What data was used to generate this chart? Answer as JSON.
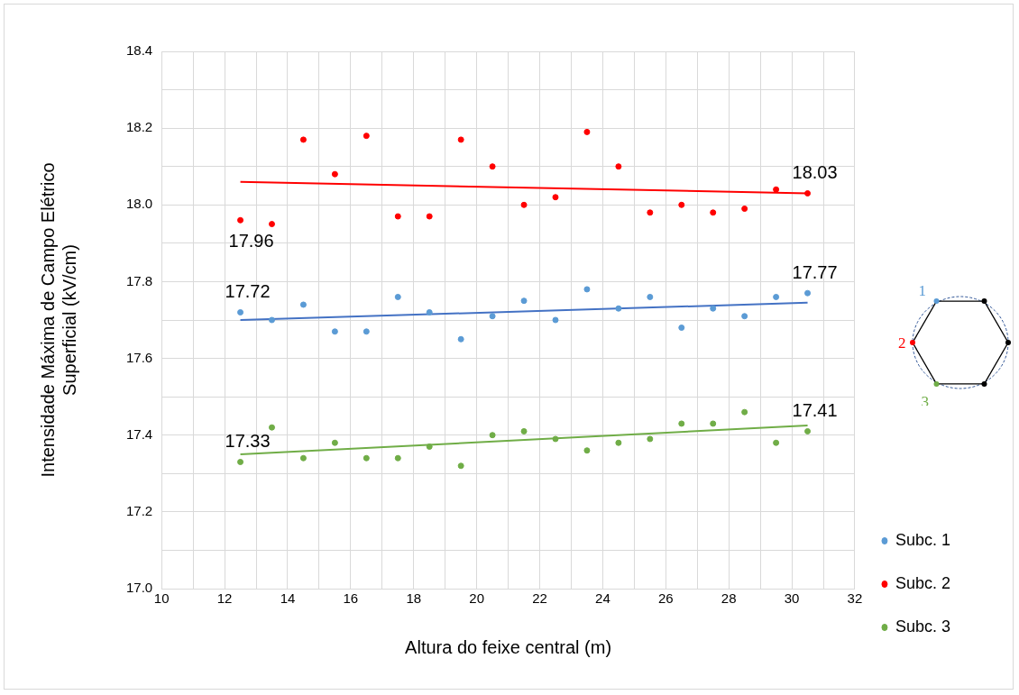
{
  "chart_data": {
    "type": "scatter",
    "xlabel": "Altura do feixe central (m)",
    "ylabel": "Intensidade Máxima de Campo Elétrico Superficial (kV/cm)",
    "x": [
      12.5,
      13.5,
      14.5,
      15.5,
      16.5,
      17.5,
      18.5,
      19.5,
      20.5,
      21.5,
      22.5,
      23.5,
      24.5,
      25.5,
      26.5,
      27.5,
      28.5,
      29.5,
      30.5
    ],
    "series": [
      {
        "name": "Subc. 1",
        "color": "#5b9bd5",
        "values": [
          17.72,
          17.7,
          17.74,
          17.67,
          17.67,
          17.76,
          17.72,
          17.65,
          17.71,
          17.75,
          17.7,
          17.78,
          17.73,
          17.76,
          17.68,
          17.73,
          17.71,
          17.76,
          17.77
        ],
        "value_labels": [
          "17.72",
          null,
          null,
          null,
          null,
          null,
          null,
          null,
          null,
          null,
          null,
          null,
          null,
          null,
          null,
          null,
          null,
          null,
          "17.77"
        ]
      },
      {
        "name": "Subc. 2",
        "color": "#ff0000",
        "values": [
          17.96,
          17.95,
          18.17,
          18.08,
          18.18,
          17.97,
          17.97,
          18.17,
          18.1,
          18.0,
          18.02,
          18.19,
          18.1,
          17.98,
          18.0,
          17.98,
          17.99,
          18.04,
          18.03
        ],
        "value_labels": [
          "17.96",
          null,
          null,
          null,
          null,
          null,
          null,
          null,
          null,
          null,
          null,
          null,
          null,
          null,
          null,
          null,
          null,
          null,
          "18.03"
        ]
      },
      {
        "name": "Subc. 3",
        "color": "#70ad47",
        "values": [
          17.33,
          17.42,
          17.34,
          17.38,
          17.34,
          17.34,
          17.37,
          17.32,
          17.4,
          17.41,
          17.39,
          17.36,
          17.38,
          17.39,
          17.43,
          17.43,
          17.46,
          17.38,
          17.41
        ],
        "value_labels": [
          "17.33",
          null,
          null,
          null,
          null,
          null,
          null,
          null,
          null,
          null,
          null,
          null,
          null,
          null,
          null,
          null,
          null,
          null,
          "17.41"
        ]
      },
      {
        "type": "line",
        "color": "#4472c4",
        "marker": "none",
        "values": [
          17.7,
          null,
          null,
          null,
          null,
          null,
          null,
          null,
          null,
          null,
          null,
          null,
          null,
          null,
          null,
          null,
          null,
          null,
          17.745
        ]
      },
      {
        "type": "line",
        "color": "#ff0000",
        "marker": "none",
        "values": [
          18.06,
          null,
          null,
          null,
          null,
          null,
          null,
          null,
          null,
          null,
          null,
          null,
          null,
          null,
          null,
          null,
          null,
          null,
          18.03
        ]
      },
      {
        "type": "line",
        "color": "#70ad47",
        "marker": "none",
        "values": [
          17.35,
          null,
          null,
          null,
          null,
          null,
          null,
          null,
          null,
          null,
          null,
          null,
          null,
          null,
          null,
          null,
          null,
          null,
          17.425
        ]
      }
    ],
    "annotations": [
      "1",
      "2",
      "3"
    ],
    "xlim": [
      10,
      32
    ],
    "xticks": [
      10,
      {
        "value": 11,
        "label": null
      },
      12,
      {
        "value": 13,
        "label": null
      },
      14,
      {
        "value": 15,
        "label": null
      },
      16,
      {
        "value": 17,
        "label": null
      },
      18,
      {
        "value": 19,
        "label": null
      },
      20,
      {
        "value": 21,
        "label": null
      },
      22,
      {
        "value": 23,
        "label": null
      },
      24,
      {
        "value": 25,
        "label": null
      },
      26,
      {
        "value": 27,
        "label": null
      },
      28,
      {
        "value": 29,
        "label": null
      },
      30,
      {
        "value": 31,
        "label": null
      },
      32
    ],
    "ylim": [
      17.0,
      18.4
    ],
    "yticks": [
      {
        "value": 17.0,
        "label": "17.0"
      },
      {
        "value": 17.1,
        "label": null
      },
      {
        "value": 17.2,
        "label": "17.2"
      },
      {
        "value": 17.3,
        "label": null
      },
      {
        "value": 17.4,
        "label": "17.4"
      },
      {
        "value": 17.5,
        "label": null
      },
      {
        "value": 17.6,
        "label": "17.6"
      },
      {
        "value": 17.7,
        "label": null
      },
      {
        "value": 17.8,
        "label": "17.8"
      },
      {
        "value": 17.9,
        "label": null
      },
      {
        "value": 18.0,
        "label": "18.0"
      },
      {
        "value": 18.1,
        "label": null
      },
      {
        "value": 18.2,
        "label": "18.2"
      },
      {
        "value": 18.3,
        "label": null
      },
      {
        "value": 18.4,
        "label": "18.4"
      }
    ],
    "grid": true,
    "legend": "right",
    "marker": "circle"
  }
}
